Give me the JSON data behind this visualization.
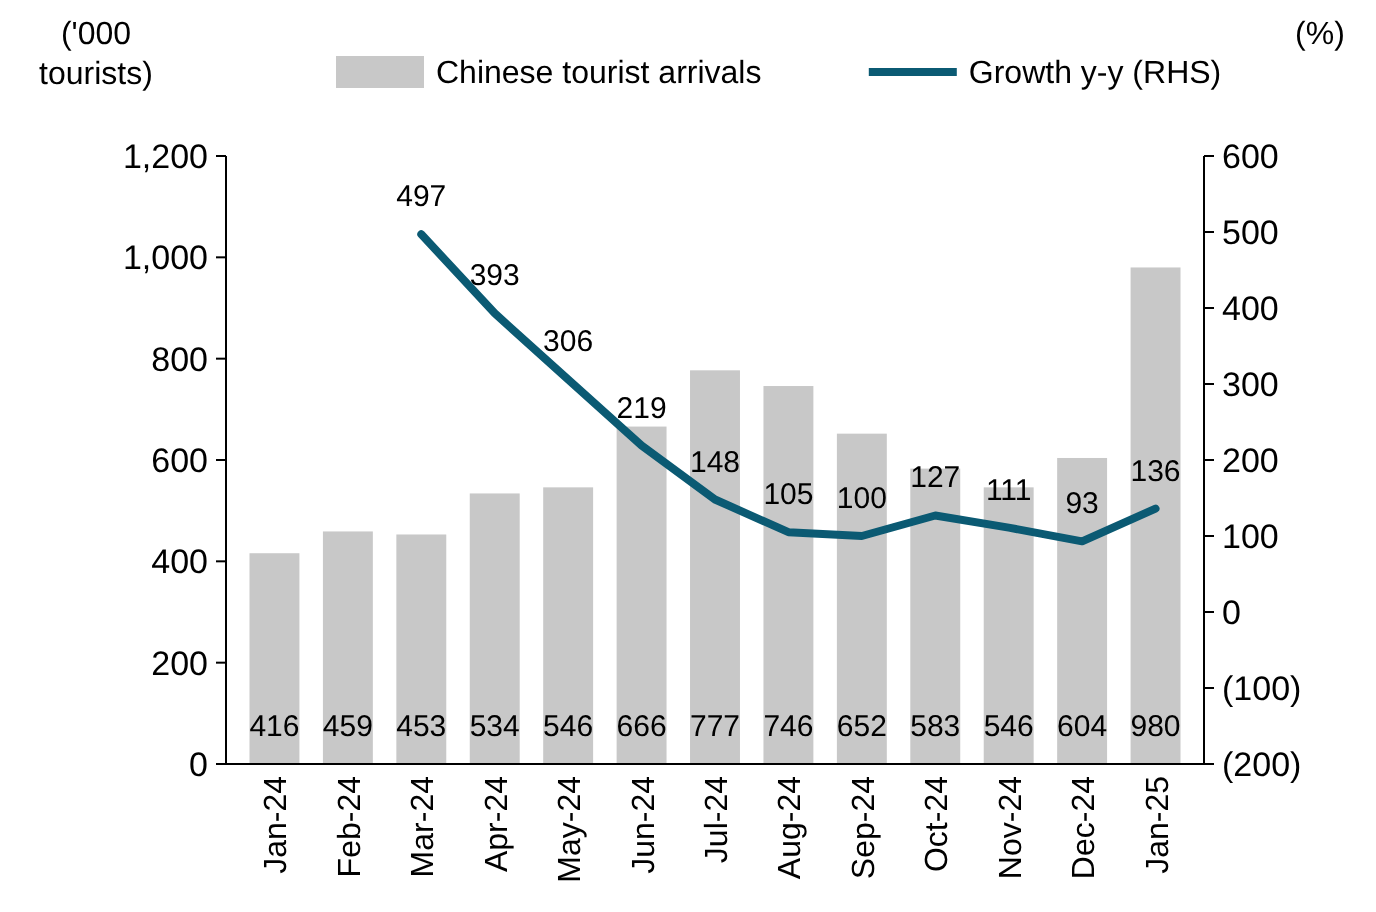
{
  "chart_data": {
    "type": "bar",
    "ylabel": "('000\ntourists)",
    "y2label": "(%)",
    "categories": [
      "Jan-24",
      "Feb-24",
      "Mar-24",
      "Apr-24",
      "May-24",
      "Jun-24",
      "Jul-24",
      "Aug-24",
      "Sep-24",
      "Oct-24",
      "Nov-24",
      "Dec-24",
      "Jan-25"
    ],
    "series": [
      {
        "name": "Chinese tourist arrivals",
        "color": "#c8c8c8",
        "values": [
          416,
          459,
          453,
          534,
          546,
          666,
          777,
          746,
          652,
          583,
          546,
          604,
          980
        ]
      },
      {
        "name": "Growth y-y (RHS)",
        "type": "line",
        "axis": "y2",
        "color": "#0b5a73",
        "values": [
          null,
          null,
          497,
          393,
          306,
          219,
          148,
          105,
          100,
          127,
          111,
          93,
          136
        ]
      }
    ],
    "ylim": [
      0,
      1200
    ],
    "yticks": [
      0,
      200,
      400,
      600,
      800,
      {
        "value": 1000,
        "label": "1,000"
      },
      {
        "value": 1200,
        "label": "1,200"
      }
    ],
    "y2lim": [
      -200,
      600
    ],
    "y2ticks": [
      {
        "value": -200,
        "label": "(200)"
      },
      {
        "value": -100,
        "label": "(100)"
      },
      0,
      100,
      200,
      300,
      400,
      500,
      600
    ],
    "data_labels": true,
    "legend": "top",
    "grid": false,
    "marker": "none",
    "line_style": "solid"
  }
}
